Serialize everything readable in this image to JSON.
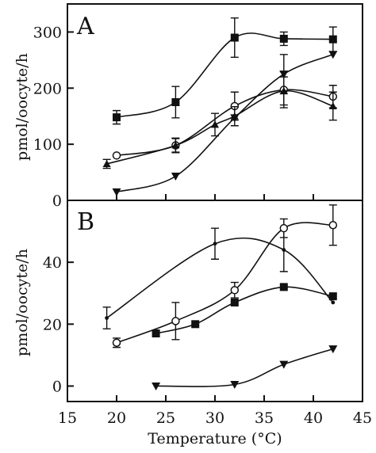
{
  "chart_data": [
    {
      "panel": "A",
      "type": "line",
      "ylabel": "pmol/oocyte/h",
      "xlim": [
        15,
        45
      ],
      "ylim": [
        0,
        350
      ],
      "yticks": [
        0,
        100,
        200,
        300
      ],
      "series": [
        {
          "marker": "filled-square",
          "points": [
            {
              "x": 20,
              "y": 148,
              "err": 12
            },
            {
              "x": 26,
              "y": 175,
              "err": 28
            },
            {
              "x": 32,
              "y": 290,
              "err": 35
            },
            {
              "x": 37,
              "y": 288,
              "err": 12
            },
            {
              "x": 42,
              "y": 287,
              "err": 22
            }
          ]
        },
        {
          "marker": "open-circle",
          "points": [
            {
              "x": 20,
              "y": 80,
              "err": 0
            },
            {
              "x": 26,
              "y": 98,
              "err": 13
            },
            {
              "x": 32,
              "y": 168,
              "err": 25
            },
            {
              "x": 37,
              "y": 197,
              "err": 32
            },
            {
              "x": 42,
              "y": 185,
              "err": 20
            }
          ]
        },
        {
          "marker": "filled-down-triangle",
          "points": [
            {
              "x": 20,
              "y": 15,
              "err": 0
            },
            {
              "x": 26,
              "y": 43,
              "err": 0
            },
            {
              "x": 32,
              "y": 147,
              "err": 0
            },
            {
              "x": 37,
              "y": 225,
              "err": 35
            },
            {
              "x": 42,
              "y": 260,
              "err": 0
            }
          ]
        },
        {
          "marker": "filled-up-triangle",
          "points": [
            {
              "x": 19,
              "y": 65,
              "err": 8
            },
            {
              "x": 26,
              "y": 98,
              "err": 12
            },
            {
              "x": 30,
              "y": 135,
              "err": 20
            },
            {
              "x": 32,
              "y": 150,
              "err": 17
            },
            {
              "x": 37,
              "y": 195,
              "err": 25
            },
            {
              "x": 42,
              "y": 168,
              "err": 25
            }
          ]
        }
      ]
    },
    {
      "panel": "B",
      "type": "line",
      "xlabel": "Temperature (°C)",
      "ylabel": "pmol/oocyte/h",
      "xlim": [
        15,
        45
      ],
      "ylim": [
        -5,
        60
      ],
      "xticks": [
        15,
        20,
        25,
        30,
        35,
        40,
        45
      ],
      "yticks": [
        0,
        20,
        40
      ],
      "series": [
        {
          "marker": "small-dot",
          "points": [
            {
              "x": 19,
              "y": 22,
              "err": 3.5
            },
            {
              "x": 30,
              "y": 46,
              "err": 5
            },
            {
              "x": 37,
              "y": 44,
              "err": 7
            },
            {
              "x": 42,
              "y": 27,
              "err": 0
            }
          ]
        },
        {
          "marker": "open-circle",
          "points": [
            {
              "x": 20,
              "y": 14,
              "err": 1.5
            },
            {
              "x": 26,
              "y": 21,
              "err": 6
            },
            {
              "x": 32,
              "y": 31,
              "err": 2.5
            },
            {
              "x": 37,
              "y": 51,
              "err": 3
            },
            {
              "x": 42,
              "y": 52,
              "err": 6.5
            }
          ]
        },
        {
          "marker": "filled-square",
          "points": [
            {
              "x": 24,
              "y": 17,
              "err": 0
            },
            {
              "x": 28,
              "y": 20,
              "err": 0
            },
            {
              "x": 32,
              "y": 27,
              "err": 0
            },
            {
              "x": 37,
              "y": 32,
              "err": 0
            },
            {
              "x": 42,
              "y": 29,
              "err": 0
            }
          ]
        },
        {
          "marker": "filled-down-triangle",
          "points": [
            {
              "x": 24,
              "y": 0,
              "err": 0
            },
            {
              "x": 32,
              "y": 0.5,
              "err": 0
            },
            {
              "x": 37,
              "y": 7,
              "err": 0
            },
            {
              "x": 42,
              "y": 12,
              "err": 0
            }
          ]
        }
      ]
    }
  ]
}
